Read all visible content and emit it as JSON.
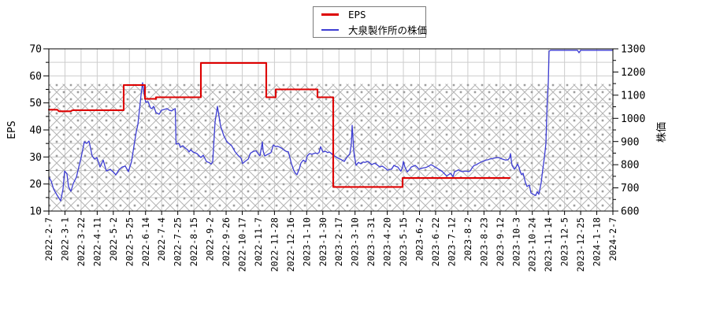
{
  "chart_data": {
    "type": "line",
    "title": "",
    "x_domain": [
      "2022-2-7",
      "2024-2-7"
    ],
    "x_unit": "fraction of x-axis span 2022-2-7 to 2024-2-7",
    "x_ticks": [
      "2022-2-7",
      "2022-3-1",
      "2022-3-22",
      "2022-4-11",
      "2022-5-2",
      "2022-5-25",
      "2022-6-14",
      "2022-7-4",
      "2022-7-25",
      "2022-8-15",
      "2022-9-2",
      "2022-9-26",
      "2022-10-17",
      "2022-11-7",
      "2022-11-28",
      "2022-12-16",
      "2023-1-10",
      "2023-1-30",
      "2023-2-17",
      "2023-3-10",
      "2023-3-31",
      "2023-4-20",
      "2023-5-15",
      "2023-6-2",
      "2023-6-22",
      "2023-7-12",
      "2023-8-2",
      "2023-8-23",
      "2023-9-12",
      "2023-10-3",
      "2023-10-24",
      "2023-11-14",
      "2023-12-5",
      "2023-12-25",
      "2024-1-18",
      "2024-2-7"
    ],
    "y_left": {
      "label": "EPS",
      "min": 10,
      "max": 70,
      "tick_step": 10,
      "minor_step": 5
    },
    "y_right": {
      "label": "株価",
      "min": 600,
      "max": 1300,
      "tick_step": 100,
      "minor_step": 50
    },
    "grid": true,
    "hatch_band": {
      "top_eps": 57,
      "bottom_eps": 10
    },
    "legend": {
      "position": "top-center",
      "items": [
        {
          "label": "EPS",
          "color": "#dd0000"
        },
        {
          "label": "大泉製作所の株価",
          "color": "#3d3dd3"
        }
      ]
    },
    "series": [
      {
        "name": "EPS",
        "axis": "left",
        "color": "#dd0000",
        "width": 2.1,
        "points": [
          [
            0,
            47.5
          ],
          [
            0.015,
            47.5
          ],
          [
            0.018,
            46.9
          ],
          [
            0.039,
            46.9
          ],
          [
            0.042,
            47.3
          ],
          [
            0.1327,
            47.3
          ],
          [
            0.1327,
            56.6
          ],
          [
            0.1704,
            56.6
          ],
          [
            0.1704,
            51.5
          ],
          [
            0.19,
            51.5
          ],
          [
            0.19,
            52.1
          ],
          [
            0.2696,
            52.1
          ],
          [
            0.2696,
            64.8
          ],
          [
            0.3855,
            64.8
          ],
          [
            0.3855,
            52.1
          ],
          [
            0.4022,
            52.1
          ],
          [
            0.4022,
            55
          ],
          [
            0.4763,
            55
          ],
          [
            0.4763,
            52.1
          ],
          [
            0.5042,
            52.1
          ],
          [
            0.5042,
            18.9
          ],
          [
            0.6271,
            18.9
          ],
          [
            0.6271,
            22.2
          ],
          [
            0.817,
            22.2
          ]
        ]
      },
      {
        "name": "大泉製作所の株価",
        "axis": "right",
        "color": "#3d3dd3",
        "width": 1.3,
        "points": [
          [
            0,
            746
          ],
          [
            0.0042,
            729
          ],
          [
            0.0084,
            695
          ],
          [
            0.014,
            671
          ],
          [
            0.0209,
            644
          ],
          [
            0.0251,
            695
          ],
          [
            0.0279,
            773
          ],
          [
            0.0321,
            760
          ],
          [
            0.0349,
            705
          ],
          [
            0.0391,
            685
          ],
          [
            0.0433,
            719
          ],
          [
            0.0489,
            746
          ],
          [
            0.0531,
            790
          ],
          [
            0.0573,
            831
          ],
          [
            0.0628,
            899
          ],
          [
            0.067,
            892
          ],
          [
            0.0712,
            902
          ],
          [
            0.0768,
            838
          ],
          [
            0.081,
            824
          ],
          [
            0.0852,
            831
          ],
          [
            0.0908,
            790
          ],
          [
            0.0964,
            820
          ],
          [
            0.1019,
            773
          ],
          [
            0.1089,
            780
          ],
          [
            0.1145,
            768
          ],
          [
            0.1187,
            756
          ],
          [
            0.1243,
            778
          ],
          [
            0.1299,
            790
          ],
          [
            0.1355,
            794
          ],
          [
            0.141,
            770
          ],
          [
            0.1466,
            814
          ],
          [
            0.1508,
            880
          ],
          [
            0.155,
            943
          ],
          [
            0.1578,
            973
          ],
          [
            0.1606,
            1035
          ],
          [
            0.1634,
            1100
          ],
          [
            0.1662,
            1154
          ],
          [
            0.169,
            1103
          ],
          [
            0.1718,
            1069
          ],
          [
            0.176,
            1072
          ],
          [
            0.1802,
            1045
          ],
          [
            0.183,
            1042
          ],
          [
            0.1858,
            1052
          ],
          [
            0.19,
            1025
          ],
          [
            0.1955,
            1018
          ],
          [
            0.1997,
            1035
          ],
          [
            0.2039,
            1038
          ],
          [
            0.2095,
            1042
          ],
          [
            0.2137,
            1035
          ],
          [
            0.2179,
            1032
          ],
          [
            0.2207,
            1038
          ],
          [
            0.2242,
            1042
          ],
          [
            0.2256,
            889
          ],
          [
            0.2304,
            892
          ],
          [
            0.2332,
            875
          ],
          [
            0.2374,
            882
          ],
          [
            0.2416,
            872
          ],
          [
            0.2458,
            865
          ],
          [
            0.2486,
            855
          ],
          [
            0.2514,
            865
          ],
          [
            0.2556,
            855
          ],
          [
            0.2626,
            848
          ],
          [
            0.2696,
            831
          ],
          [
            0.2737,
            841
          ],
          [
            0.2793,
            814
          ],
          [
            0.2849,
            808
          ],
          [
            0.2877,
            803
          ],
          [
            0.2905,
            812
          ],
          [
            0.2947,
            984
          ],
          [
            0.2989,
            1052
          ],
          [
            0.3045,
            967
          ],
          [
            0.3101,
            926
          ],
          [
            0.3156,
            899
          ],
          [
            0.324,
            882
          ],
          [
            0.3296,
            858
          ],
          [
            0.3352,
            841
          ],
          [
            0.3408,
            828
          ],
          [
            0.3436,
            805
          ],
          [
            0.3478,
            814
          ],
          [
            0.3534,
            824
          ],
          [
            0.3575,
            850
          ],
          [
            0.3631,
            858
          ],
          [
            0.3673,
            860
          ],
          [
            0.3715,
            846
          ],
          [
            0.3743,
            838
          ],
          [
            0.3785,
            898
          ],
          [
            0.3799,
            860
          ],
          [
            0.3827,
            838
          ],
          [
            0.3883,
            845
          ],
          [
            0.3939,
            852
          ],
          [
            0.3981,
            885
          ],
          [
            0.4022,
            878
          ],
          [
            0.405,
            880
          ],
          [
            0.4092,
            876
          ],
          [
            0.4134,
            870
          ],
          [
            0.4176,
            862
          ],
          [
            0.4204,
            858
          ],
          [
            0.4246,
            856
          ],
          [
            0.4274,
            830
          ],
          [
            0.4302,
            804
          ],
          [
            0.4344,
            775
          ],
          [
            0.4372,
            763
          ],
          [
            0.44,
            757
          ],
          [
            0.4441,
            782
          ],
          [
            0.4469,
            807
          ],
          [
            0.4511,
            820
          ],
          [
            0.4553,
            812
          ],
          [
            0.4581,
            838
          ],
          [
            0.4623,
            848
          ],
          [
            0.4665,
            845
          ],
          [
            0.4721,
            850
          ],
          [
            0.4763,
            848
          ],
          [
            0.4791,
            852
          ],
          [
            0.4819,
            878
          ],
          [
            0.4847,
            862
          ],
          [
            0.4861,
            855
          ],
          [
            0.4903,
            858
          ],
          [
            0.4944,
            852
          ],
          [
            0.4972,
            855
          ],
          [
            0.5014,
            848
          ],
          [
            0.5042,
            841
          ],
          [
            0.5084,
            835
          ],
          [
            0.5112,
            830
          ],
          [
            0.5168,
            824
          ],
          [
            0.521,
            818
          ],
          [
            0.5238,
            814
          ],
          [
            0.5266,
            825
          ],
          [
            0.5294,
            835
          ],
          [
            0.5335,
            845
          ],
          [
            0.5363,
            890
          ],
          [
            0.5377,
            970
          ],
          [
            0.5391,
            920
          ],
          [
            0.5405,
            860
          ],
          [
            0.5419,
            835
          ],
          [
            0.5447,
            797
          ],
          [
            0.5489,
            810
          ],
          [
            0.5531,
            804
          ],
          [
            0.5573,
            812
          ],
          [
            0.5601,
            810
          ],
          [
            0.5656,
            814
          ],
          [
            0.5698,
            806
          ],
          [
            0.5726,
            800
          ],
          [
            0.5768,
            806
          ],
          [
            0.5796,
            804
          ],
          [
            0.5838,
            796
          ],
          [
            0.5866,
            790
          ],
          [
            0.5908,
            794
          ],
          [
            0.5936,
            790
          ],
          [
            0.5978,
            782
          ],
          [
            0.6006,
            776
          ],
          [
            0.6048,
            780
          ],
          [
            0.6076,
            780
          ],
          [
            0.6117,
            797
          ],
          [
            0.6159,
            792
          ],
          [
            0.6187,
            790
          ],
          [
            0.6215,
            780
          ],
          [
            0.6243,
            772
          ],
          [
            0.6271,
            790
          ],
          [
            0.6285,
            814
          ],
          [
            0.6313,
            790
          ],
          [
            0.6355,
            769
          ],
          [
            0.6397,
            780
          ],
          [
            0.6425,
            790
          ],
          [
            0.6466,
            794
          ],
          [
            0.6494,
            797
          ],
          [
            0.6536,
            788
          ],
          [
            0.6564,
            780
          ],
          [
            0.6606,
            784
          ],
          [
            0.6634,
            786
          ],
          [
            0.6676,
            788
          ],
          [
            0.6704,
            790
          ],
          [
            0.6745,
            795
          ],
          [
            0.6773,
            800
          ],
          [
            0.6815,
            795
          ],
          [
            0.6843,
            790
          ],
          [
            0.6885,
            785
          ],
          [
            0.6913,
            780
          ],
          [
            0.6955,
            774
          ],
          [
            0.6983,
            769
          ],
          [
            0.7025,
            758
          ],
          [
            0.7053,
            752
          ],
          [
            0.7095,
            758
          ],
          [
            0.7123,
            763
          ],
          [
            0.7165,
            748
          ],
          [
            0.7193,
            770
          ],
          [
            0.7235,
            774
          ],
          [
            0.7263,
            778
          ],
          [
            0.7304,
            772
          ],
          [
            0.7332,
            770
          ],
          [
            0.7374,
            772
          ],
          [
            0.7402,
            772
          ],
          [
            0.7444,
            770
          ],
          [
            0.7472,
            774
          ],
          [
            0.7514,
            790
          ],
          [
            0.7542,
            797
          ],
          [
            0.7584,
            800
          ],
          [
            0.7612,
            805
          ],
          [
            0.7654,
            810
          ],
          [
            0.7682,
            814
          ],
          [
            0.7723,
            817
          ],
          [
            0.7751,
            820
          ],
          [
            0.7793,
            822
          ],
          [
            0.7821,
            825
          ],
          [
            0.7863,
            826
          ],
          [
            0.7891,
            828
          ],
          [
            0.7933,
            830
          ],
          [
            0.7961,
            831
          ],
          [
            0.8003,
            828
          ],
          [
            0.8031,
            825
          ],
          [
            0.8073,
            822
          ],
          [
            0.8101,
            820
          ],
          [
            0.8142,
            822
          ],
          [
            0.817,
            830
          ],
          [
            0.8184,
            848
          ],
          [
            0.8198,
            820
          ],
          [
            0.8212,
            797
          ],
          [
            0.8254,
            780
          ],
          [
            0.8282,
            790
          ],
          [
            0.831,
            803
          ],
          [
            0.8338,
            788
          ],
          [
            0.8352,
            774
          ],
          [
            0.838,
            757
          ],
          [
            0.8408,
            763
          ],
          [
            0.845,
            723
          ],
          [
            0.8478,
            706
          ],
          [
            0.852,
            712
          ],
          [
            0.8547,
            678
          ],
          [
            0.8589,
            672
          ],
          [
            0.8631,
            667
          ],
          [
            0.8659,
            684
          ],
          [
            0.8687,
            672
          ],
          [
            0.8729,
            723
          ],
          [
            0.8757,
            780
          ],
          [
            0.8785,
            830
          ],
          [
            0.8813,
            892
          ],
          [
            0.8827,
            1008
          ],
          [
            0.8841,
            1100
          ],
          [
            0.8855,
            1154
          ],
          [
            0.8869,
            1290
          ],
          [
            0.8897,
            1294
          ],
          [
            0.9372,
            1294
          ],
          [
            0.94,
            1283
          ],
          [
            0.9427,
            1294
          ],
          [
            1,
            1294
          ]
        ]
      }
    ],
    "colors": {
      "grid": "#cdcdcd",
      "hatch_line": "#b3b3b3",
      "hatch_dot": "#9d9d9d",
      "axis": "#000000"
    }
  }
}
